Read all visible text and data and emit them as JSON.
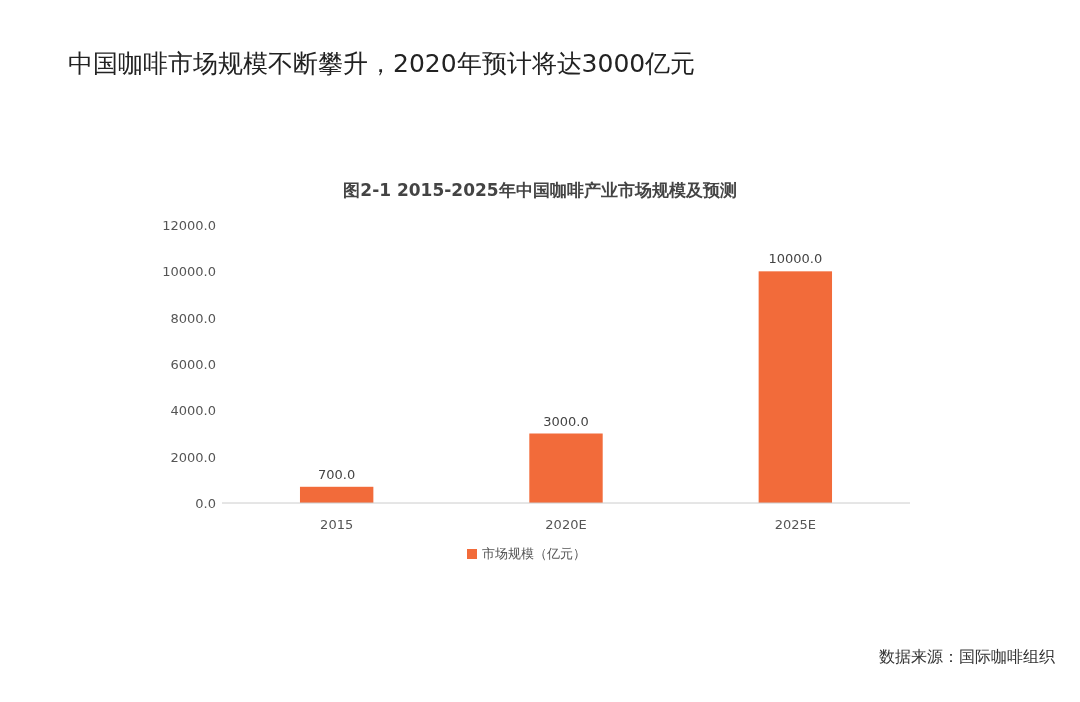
{
  "chart_data": {
    "type": "bar",
    "title": "中国咖啡市场规模不断攀升，2020年预计将达3000亿元",
    "subtitle": "图2-1 2015-2025年中国咖啡产业市场规模及预测",
    "categories": [
      "2015",
      "2020E",
      "2025E"
    ],
    "series": [
      {
        "name": "市场规模（亿元）",
        "color": "#f26b3a",
        "values": [
          700,
          3000,
          10000
        ],
        "value_labels": [
          "700.0",
          "3000.0",
          "10000.0"
        ]
      }
    ],
    "ylim": [
      0,
      12000
    ],
    "yticks": [
      {
        "value": 0,
        "label": "0.0"
      },
      {
        "value": 2000,
        "label": "2000.0"
      },
      {
        "value": 4000,
        "label": "4000.0"
      },
      {
        "value": 6000,
        "label": "6000.0"
      },
      {
        "value": 8000,
        "label": "8000.0"
      },
      {
        "value": 10000,
        "label": "10000.0"
      },
      {
        "value": 12000,
        "label": "12000.0"
      }
    ],
    "grid": false,
    "legend": "bottom",
    "annotations": [
      "数据来源：国际咖啡组织"
    ]
  }
}
